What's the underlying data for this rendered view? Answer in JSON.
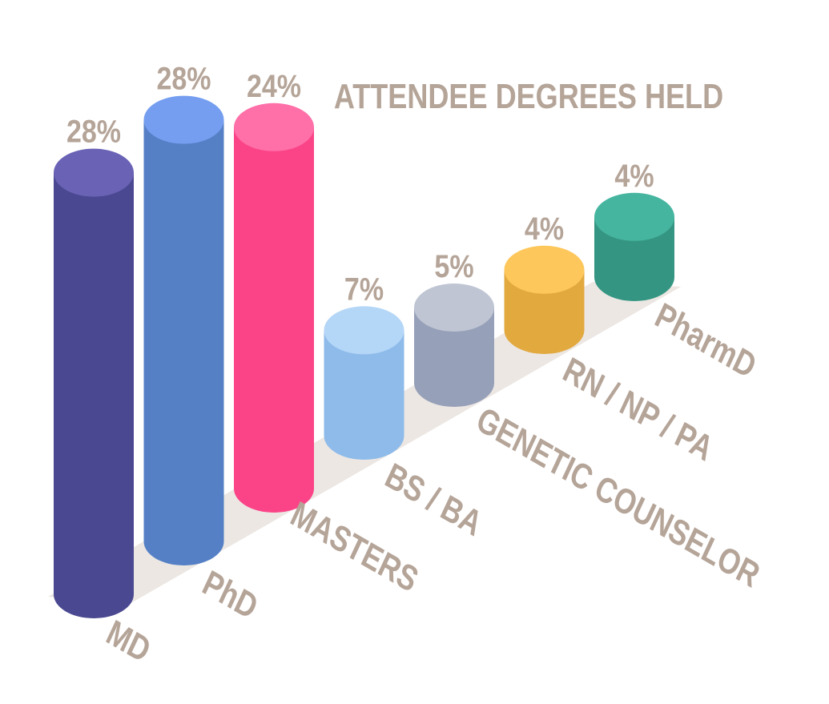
{
  "chart_data": {
    "type": "bar",
    "title": "ATTENDEE DEGREES HELD",
    "categories": [
      "MD",
      "PhD",
      "MASTERS",
      "BS / BA",
      "GENETIC COUNSELOR",
      "RN / NP / PA",
      "PharmD"
    ],
    "values": [
      28,
      28,
      24,
      7,
      5,
      4,
      4
    ],
    "value_labels": [
      "28%",
      "28%",
      "24%",
      "7%",
      "5%",
      "4%",
      "4%"
    ],
    "unit": "%",
    "colors": [
      {
        "side": "#4a4891",
        "top": "#6a62b5"
      },
      {
        "side": "#5580c6",
        "top": "#759ef0"
      },
      {
        "side": "#fb4488",
        "top": "#ff6fa8"
      },
      {
        "side": "#8ebbea",
        "top": "#b4d6f7"
      },
      {
        "side": "#96a0b8",
        "top": "#bfc5d3"
      },
      {
        "side": "#e2a93f",
        "top": "#fdc75c"
      },
      {
        "side": "#349682",
        "top": "#46b5a0"
      }
    ],
    "floor_color": "#ece7e3",
    "text_color": "#b5a498",
    "grid": false,
    "legend": "none"
  }
}
